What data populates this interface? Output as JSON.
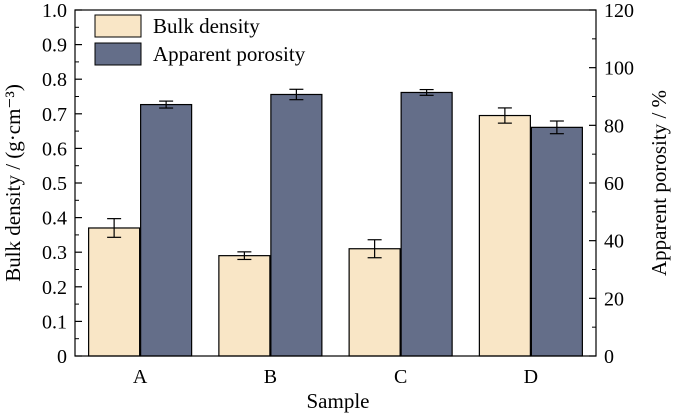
{
  "chart_data": {
    "type": "bar",
    "xlabel": "Sample",
    "ylabel_left": "Bulk density / (g·cm⁻³)",
    "ylabel_right": "Apparent porosity / %",
    "categories": [
      "A",
      "B",
      "C",
      "D"
    ],
    "left_axis": {
      "ylim": [
        0,
        1.0
      ],
      "ticks": [
        "0",
        "0.1",
        "0.2",
        "0.3",
        "0.4",
        "0.5",
        "0.6",
        "0.7",
        "0.8",
        "0.9",
        "1.0"
      ]
    },
    "right_axis": {
      "ylim": [
        0,
        120
      ],
      "ticks": [
        "0",
        "20",
        "40",
        "60",
        "80",
        "100",
        "120"
      ]
    },
    "series": [
      {
        "name": "Bulk density",
        "axis": "left",
        "color": "#F9E6C6",
        "values": [
          0.37,
          0.29,
          0.31,
          0.695
        ],
        "errors": [
          0.027,
          0.011,
          0.026,
          0.022
        ]
      },
      {
        "name": "Apparent porosity",
        "axis": "right",
        "color": "#646E89",
        "values": [
          87.2,
          90.7,
          91.4,
          79.3
        ],
        "errors": [
          1.2,
          1.8,
          1.0,
          2.2
        ]
      }
    ],
    "legend_position": "top-left",
    "grid": false
  }
}
